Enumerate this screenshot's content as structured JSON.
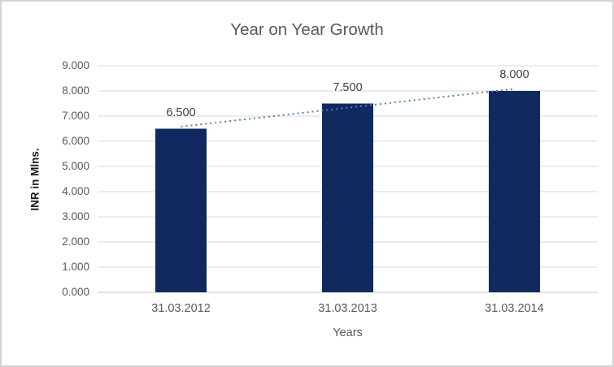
{
  "window": {
    "background": "#ffffff",
    "border_color": "#d4d4d4"
  },
  "chart_data": {
    "type": "bar",
    "title": "Year on Year Growth",
    "xlabel": "Years",
    "ylabel": "INR in Mlns.",
    "categories": [
      "31.03.2012",
      "31.03.2013",
      "31.03.2014"
    ],
    "values": [
      6.5,
      7.5,
      8.0
    ],
    "data_labels": [
      "6.500",
      "7.500",
      "8.000"
    ],
    "y_ticks": [
      "0.000",
      "1.000",
      "2.000",
      "3.000",
      "4.000",
      "5.000",
      "6.000",
      "7.000",
      "8.000",
      "9.000"
    ],
    "ylim": [
      0,
      9
    ],
    "grid": true,
    "legend": "none",
    "trendline": {
      "type": "linear",
      "style": "dotted",
      "color": "#4e82be"
    },
    "colors": {
      "bar": "#11295e",
      "gridline": "#d9d9d9",
      "axis_line": "#c9c9c9",
      "title_text": "#595959",
      "tick_text": "#595959",
      "data_label_text": "#404040",
      "y_axis_title_text": "#1a1a1a"
    }
  }
}
